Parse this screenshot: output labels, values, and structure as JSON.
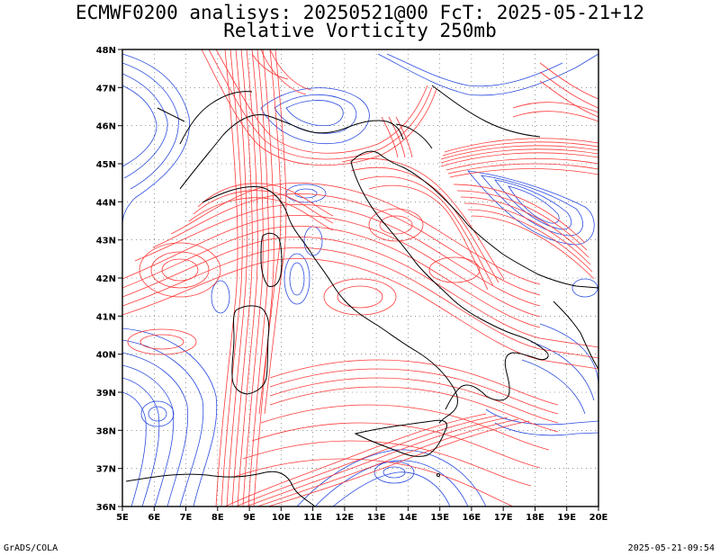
{
  "title_line1": "ECMWF0200 analisys: 20250521@00 FcT: 2025-05-21+12",
  "title_line2": "Relative Vorticity 250mb",
  "axes": {
    "lon_labels": [
      "5E",
      "6E",
      "7E",
      "8E",
      "9E",
      "10E",
      "11E",
      "12E",
      "13E",
      "14E",
      "15E",
      "16E",
      "17E",
      "18E",
      "19E",
      "20E"
    ],
    "lat_labels": [
      "48N",
      "47N",
      "46N",
      "45N",
      "44N",
      "43N",
      "42N",
      "41N",
      "40N",
      "39N",
      "38N",
      "37N",
      "36N"
    ],
    "lon_range": [
      5,
      20
    ],
    "lat_range": [
      36,
      48
    ],
    "grid": "dotted"
  },
  "colors": {
    "positive_contour": "#ff3a3a",
    "negative_contour": "#2a4be0",
    "coastline": "#000000"
  },
  "footer_left": "GrADS/COLA",
  "footer_right": "2025-05-21-09:54"
}
